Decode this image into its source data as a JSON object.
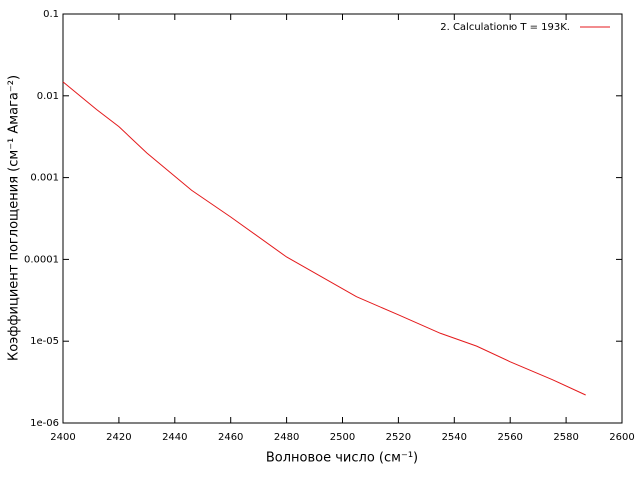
{
  "chart_data": {
    "type": "line",
    "xlabel": "Волновое число (см⁻¹)",
    "ylabel": "Коэффициент поглощения (см⁻¹ Амага⁻²)",
    "x": [
      2400,
      2412,
      2420,
      2430,
      2446,
      2460,
      2480,
      2505,
      2520,
      2535,
      2548,
      2560,
      2575,
      2587
    ],
    "series": [
      {
        "name": "2. Calculationю T = 193K.",
        "color": "#e41a1c",
        "values": [
          0.0148,
          0.0068,
          0.0042,
          0.002,
          0.0007,
          0.00033,
          0.000107,
          3.5e-05,
          2.1e-05,
          1.25e-05,
          8.7e-06,
          5.6e-06,
          3.4e-06,
          2.2e-06
        ]
      }
    ],
    "xlim": [
      2400,
      2600
    ],
    "xticks": [
      2400,
      2420,
      2440,
      2460,
      2480,
      2500,
      2520,
      2540,
      2560,
      2580,
      2600
    ],
    "ylim": [
      1e-06,
      0.1
    ],
    "yticks": [
      {
        "value": 1e-06,
        "label": "1e-06"
      },
      {
        "value": 1e-05,
        "label": "1e-05"
      },
      0.0001,
      0.001,
      0.01,
      0.1
    ],
    "ylog": true,
    "legend": "top-right"
  }
}
